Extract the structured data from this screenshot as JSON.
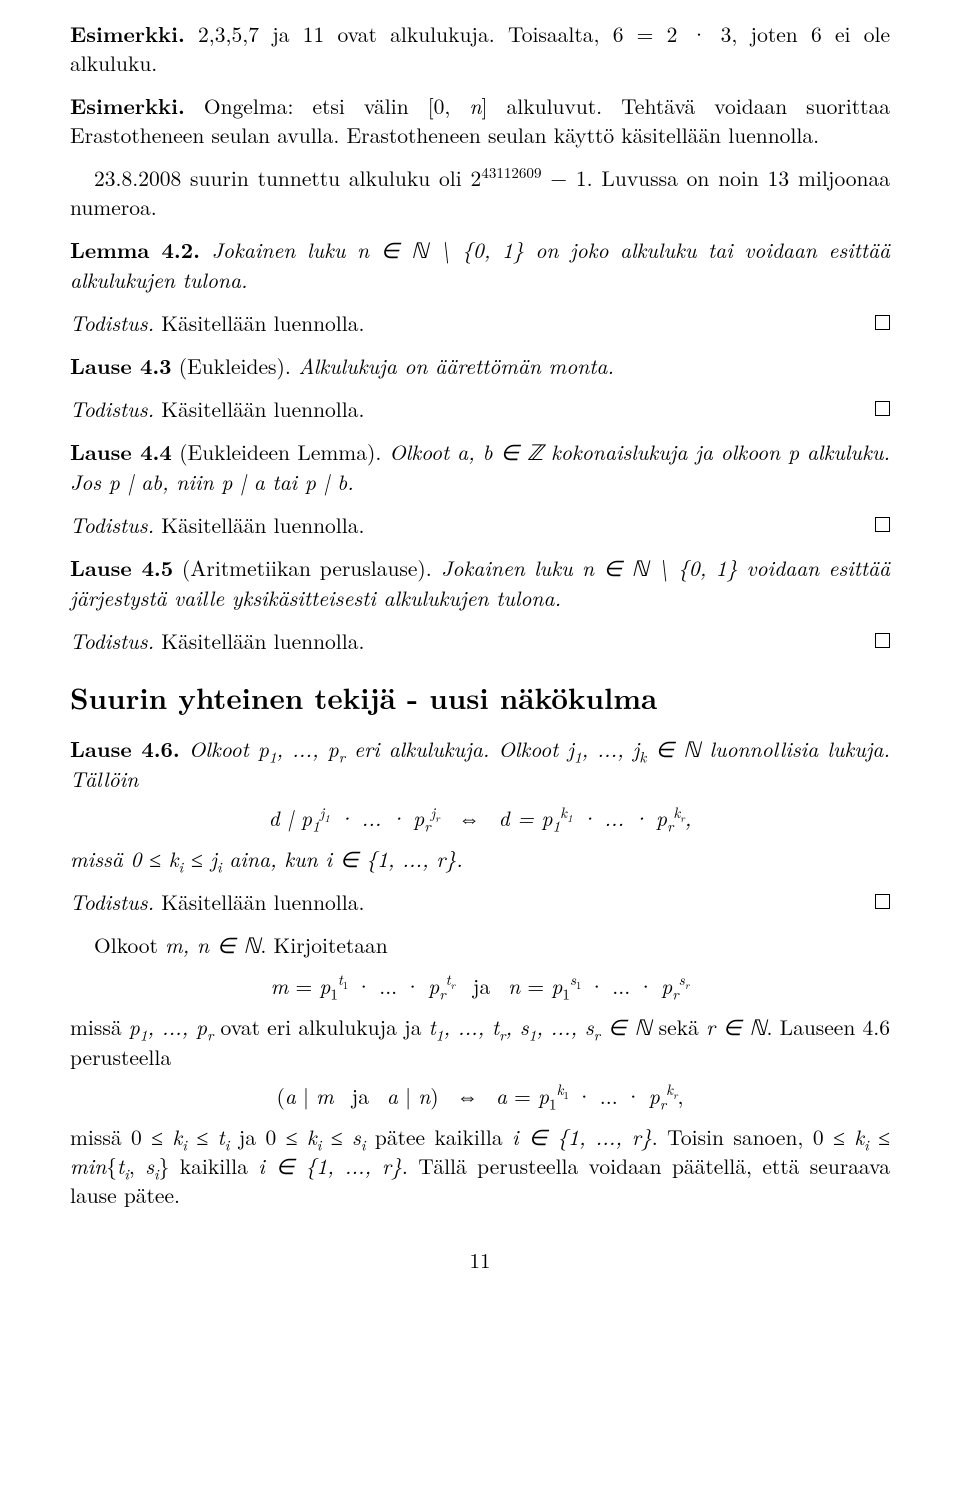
{
  "page_number": "11",
  "ex1": {
    "bold": "Esimerkki.",
    "text_a": " 2,3,5,7 ja 11 ovat alkulukuja. Toisaalta, 6 = 2 · 3, joten 6 ei ole alkuluku."
  },
  "ex2": {
    "bold": "Esimerkki.",
    "text_a": " Ongelma: etsi välin [0, ",
    "text_b": "] alkuluvut. Tehtävä voidaan suorittaa Erastotheneen seulan avulla. Erastotheneen seulan käyttö käsitellään luennolla.",
    "text_c": "23.8.2008 suurin tunnettu alkuluku oli 2",
    "exp": "43112609",
    "text_d": " − 1. Luvussa on noin 13 miljoonaa numeroa."
  },
  "lemma42": {
    "bold": "Lemma 4.2.",
    "it_a": " Jokainen luku ",
    "it_b": " on joko alkuluku tai voidaan esittää alkulukujen tulona."
  },
  "proof_label": "Todistus.",
  "proof_text": " Käsitellään luennolla.",
  "lause43": {
    "bold": "Lause 4.3",
    "paren": " (Eukleides).",
    "it": " Alkulukuja on äärettömän monta."
  },
  "lause44": {
    "bold": "Lause 4.4",
    "paren": " (Eukleideen Lemma).",
    "it_a": " Olkoot ",
    "it_b": " kokonaislukuja ja olkoon ",
    "it_c": " alkuluku. Jos ",
    "it_d": ", niin ",
    "it_e": " tai "
  },
  "lause45": {
    "bold": "Lause 4.5",
    "paren": " (Aritmetiikan peruslause).",
    "it_a": " Jokainen luku ",
    "it_b": " voidaan esittää järjestystä vaille yksikäsitteisesti alkulukujen tulona."
  },
  "section": "Suurin yhteinen tekijä - uusi näkökulma",
  "lause46": {
    "bold": "Lause 4.6.",
    "it_a": " Olkoot ",
    "it_b": " eri alkulukuja. Olkoot ",
    "it_c": " luonnollisia lukuja. Tällöin",
    "it_d": "missä ",
    "it_e": " aina, kun "
  },
  "after46_a": "Olkoot ",
  "after46_b": ". Kirjoitetaan",
  "after46_c": "missä ",
  "after46_d": " ovat eri alkulukuja ja ",
  "after46_e": " sekä ",
  "after46_f": ". Lauseen 4.6 perusteella",
  "final_a": "missä ",
  "final_b": " ja ",
  "final_c": " pätee kaikilla ",
  "final_d": ". Toisin sanoen, ",
  "final_e": " kaikilla ",
  "final_f": ". Tällä perusteella voidaan päätellä, että seuraava lause pätee."
}
